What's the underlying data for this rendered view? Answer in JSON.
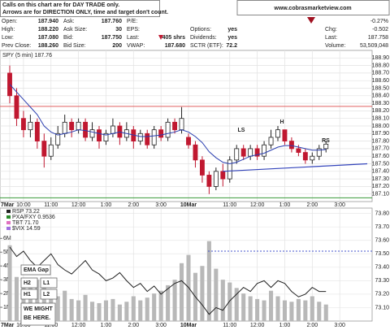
{
  "header": {
    "notice": [
      "Calls on this chart are for DAY TRADE only.",
      "Arrows are for DIRECTION ONLY, time and target don't count."
    ],
    "site": "www.cobrasmarketview.com",
    "quote_rows": [
      [
        [
          "Open:",
          "187.940"
        ],
        [
          "Ask:",
          "187.760"
        ],
        [
          "P/E:"
        ]
      ],
      [
        [
          "High:",
          "188.220"
        ],
        [
          "Ask Size:",
          "30"
        ],
        [
          "EPS:"
        ],
        [
          "Options:",
          "yes"
        ]
      ],
      [
        [
          "Low:",
          "187.080"
        ],
        [
          "Bid:",
          "187.750"
        ],
        [
          "Last:",
          "405 shrs"
        ],
        [
          "Dividends:",
          "yes"
        ]
      ],
      [
        [
          "Prev Close:",
          "188.260"
        ],
        [
          "Bid Size:",
          "200"
        ],
        [
          "VWAP:",
          "187.680"
        ],
        [
          "SCTR (ETF):",
          "72.2"
        ]
      ]
    ],
    "quote_right": [
      [
        "-0.27%"
      ],
      [
        "Chg:",
        "-0.502"
      ],
      [
        "Last:",
        "187.758"
      ],
      [
        "Volume:",
        "53,509,048"
      ]
    ]
  },
  "chart_data": [
    {
      "type": "candlestick",
      "title": "SPY (5 min) 187.76",
      "x": [
        0,
        1,
        2,
        3,
        4,
        5,
        6,
        7,
        8,
        9,
        10,
        11,
        12,
        13,
        14,
        15,
        16,
        17,
        18,
        19,
        20,
        21,
        22,
        23,
        24,
        25,
        26,
        27,
        28,
        29,
        30,
        31,
        32,
        33,
        34,
        35,
        36,
        37,
        38,
        39,
        40,
        41,
        42,
        43,
        44,
        45,
        46
      ],
      "open": [
        188.7,
        188.4,
        188.1,
        187.95,
        188.05,
        187.8,
        187.6,
        187.75,
        187.9,
        188.05,
        187.95,
        188.05,
        187.85,
        187.95,
        187.8,
        187.9,
        188.0,
        187.85,
        187.95,
        187.8,
        187.9,
        187.75,
        187.95,
        187.85,
        188.05,
        187.95,
        187.85,
        187.75,
        187.55,
        187.35,
        187.2,
        187.4,
        187.3,
        187.55,
        187.7,
        187.6,
        187.7,
        187.6,
        187.75,
        187.85,
        187.95,
        187.8,
        187.7,
        187.65,
        187.55,
        187.6,
        187.7
      ],
      "high": [
        188.8,
        188.5,
        188.2,
        188.15,
        188.1,
        187.9,
        187.85,
        188.0,
        188.15,
        188.1,
        188.1,
        188.1,
        188.05,
        188.0,
        187.95,
        188.1,
        188.05,
        188.05,
        188.0,
        187.95,
        187.95,
        188.0,
        188.0,
        188.1,
        188.1,
        188.25,
        187.9,
        187.8,
        187.6,
        187.4,
        187.45,
        187.5,
        187.6,
        187.75,
        187.75,
        187.75,
        187.75,
        187.8,
        187.95,
        188.0,
        187.95,
        187.85,
        187.75,
        187.7,
        187.65,
        187.75,
        187.8
      ],
      "low": [
        188.3,
        188.0,
        187.85,
        187.85,
        187.7,
        187.45,
        187.55,
        187.7,
        187.85,
        187.85,
        187.9,
        187.8,
        187.8,
        187.7,
        187.75,
        187.85,
        187.75,
        187.8,
        187.7,
        187.75,
        187.7,
        187.7,
        187.8,
        187.8,
        187.9,
        187.9,
        187.7,
        187.45,
        187.25,
        187.1,
        187.15,
        187.2,
        187.25,
        187.5,
        187.55,
        187.55,
        187.55,
        187.55,
        187.7,
        187.8,
        187.75,
        187.65,
        187.6,
        187.5,
        187.5,
        187.55,
        187.65
      ],
      "close": [
        188.4,
        188.1,
        187.95,
        188.05,
        187.8,
        187.6,
        187.75,
        187.9,
        188.05,
        187.95,
        188.05,
        187.85,
        187.95,
        187.8,
        187.9,
        188.0,
        187.85,
        187.95,
        187.8,
        187.9,
        187.75,
        187.95,
        187.85,
        188.05,
        187.95,
        188.1,
        187.75,
        187.55,
        187.35,
        187.2,
        187.4,
        187.3,
        187.55,
        187.7,
        187.6,
        187.7,
        187.6,
        187.75,
        187.85,
        187.95,
        187.8,
        187.7,
        187.65,
        187.55,
        187.6,
        187.7,
        187.76
      ],
      "up_color": "#222222",
      "down_color": "#c01830",
      "overlays": [
        {
          "color": "#2b3fb0",
          "values": [
            188.55,
            188.45,
            188.35,
            188.25,
            188.15,
            188.0,
            187.92,
            187.88,
            187.9,
            187.92,
            187.95,
            187.94,
            187.92,
            187.9,
            187.88,
            187.9,
            187.92,
            187.9,
            187.88,
            187.86,
            187.86,
            187.87,
            187.88,
            187.9,
            187.92,
            187.95,
            187.92,
            187.86,
            187.78,
            187.66,
            187.58,
            187.52,
            187.5,
            187.52,
            187.56,
            187.6,
            187.62,
            187.64,
            187.68,
            187.72,
            187.74,
            187.74,
            187.72,
            187.7,
            187.68,
            187.68,
            187.69
          ]
        }
      ],
      "ref_lines": [
        {
          "value": 188.26,
          "color": "#e06060"
        },
        {
          "value": 187.05,
          "color": "#3a9a3a"
        }
      ],
      "neckline": {
        "x": [
          31,
          52
        ],
        "y": [
          187.4,
          187.5
        ],
        "color": "#3344bb"
      },
      "annotations": [
        "LS",
        "H",
        "RS"
      ],
      "annotation_color": "#1a2fb0",
      "xlim": [
        0,
        52
      ],
      "ylim": [
        187.0,
        189.0
      ],
      "xticks": [
        {
          "value": 0,
          "label": "7Mar"
        },
        {
          "value": 2,
          "label": "10:00"
        },
        {
          "value": 6,
          "label": "11:00"
        },
        {
          "value": 10,
          "label": "12:00"
        },
        {
          "value": 14,
          "label": "1:00"
        },
        {
          "value": 18,
          "label": "2:00"
        },
        {
          "value": 22,
          "label": "3:00"
        },
        {
          "value": 26,
          "label": "10Mar"
        },
        {
          "value": 32,
          "label": "11:00"
        },
        {
          "value": 36,
          "label": "12:00"
        },
        {
          "value": 40,
          "label": "1:00"
        },
        {
          "value": 44,
          "label": "2:00"
        },
        {
          "value": 48,
          "label": "3:00"
        }
      ],
      "yticks": [
        {
          "value": 187.1,
          "label": "187.10"
        },
        {
          "value": 187.2,
          "label": "187.20"
        },
        {
          "value": 187.3,
          "label": "187.30"
        },
        {
          "value": 187.4,
          "label": "187.40"
        },
        {
          "value": 187.5,
          "label": "187.50"
        },
        {
          "value": 187.6,
          "label": "187.60"
        },
        {
          "value": 187.7,
          "label": "187.70"
        },
        {
          "value": 187.8,
          "label": "187.80"
        },
        {
          "value": 187.9,
          "label": "187.90"
        },
        {
          "value": 188.0,
          "label": "188.00"
        },
        {
          "value": 188.1,
          "label": "188.10"
        },
        {
          "value": 188.2,
          "label": "188.20"
        },
        {
          "value": 188.3,
          "label": "188.30"
        },
        {
          "value": 188.4,
          "label": "188.40"
        },
        {
          "value": 188.5,
          "label": "188.50"
        },
        {
          "value": 188.6,
          "label": "188.60"
        },
        {
          "value": 188.7,
          "label": "188.70"
        },
        {
          "value": 188.8,
          "label": "188.80"
        },
        {
          "value": 188.9,
          "label": "188.90"
        }
      ],
      "grid": true
    },
    {
      "type": "line",
      "series": [
        {
          "name": "RSP 73.22",
          "color": "#222222",
          "values": [
            73.55,
            73.48,
            73.52,
            73.45,
            73.4,
            73.45,
            73.5,
            73.42,
            73.38,
            73.35,
            73.4,
            73.45,
            73.38,
            73.35,
            73.3,
            73.32,
            73.36,
            73.3,
            73.25,
            73.28,
            73.22,
            73.26,
            73.2,
            73.24,
            73.28,
            73.3,
            73.25,
            73.18,
            73.12,
            73.05,
            73.1,
            73.08,
            73.15,
            73.2,
            73.25,
            73.22,
            73.28,
            73.3,
            73.25,
            73.3,
            73.28,
            73.22,
            73.18,
            73.2,
            73.25,
            73.22,
            73.22
          ]
        }
      ],
      "legend_extra": [
        {
          "name": "PXA/FXY 0.9536",
          "color": "#2b8a2b"
        },
        {
          "name": "TBT 71.70",
          "color": "#e070c0"
        },
        {
          "name": "$VIX 14.59",
          "color": "#a070e0"
        }
      ],
      "volume": {
        "color": "#b8b8b8",
        "axis": "y2",
        "values": [
          5500000,
          3200000,
          2800000,
          2400000,
          3000000,
          2600000,
          2000000,
          1800000,
          2200000,
          1600000,
          1500000,
          1900000,
          1400000,
          1300000,
          1500000,
          1600000,
          1200000,
          1400000,
          1800000,
          1500000,
          1700000,
          2000000,
          2200000,
          2600000,
          3000000,
          4200000,
          4800000,
          3500000,
          4000000,
          5800000,
          3800000,
          3000000,
          2800000,
          2400000,
          2000000,
          1800000,
          1600000,
          1500000,
          2200000,
          1800000,
          1500000,
          1400000,
          1600000,
          1500000,
          1800000,
          1400000,
          1200000
        ]
      },
      "ref_lines": [
        {
          "value": 73.52,
          "color": "#4455cc"
        }
      ],
      "annotations": [
        "EMA Gap",
        "H2",
        "L1",
        "H1",
        "L2",
        [
          "WE MIGHT",
          "BE HERE."
        ]
      ],
      "annotation_color": "#1a2fb0",
      "ylim": [
        73.0,
        73.84
      ],
      "yticks": [
        {
          "value": 73.1,
          "label": "73.10"
        },
        {
          "value": 73.2,
          "label": "73.20"
        },
        {
          "value": 73.3,
          "label": "73.30"
        },
        {
          "value": 73.4,
          "label": "73.40"
        },
        {
          "value": 73.5,
          "label": "73.50"
        },
        {
          "value": 73.6,
          "label": "73.60"
        },
        {
          "value": 73.7,
          "label": "73.70"
        },
        {
          "value": 73.8,
          "label": "73.80"
        }
      ],
      "y2lim": [
        0,
        8200000
      ],
      "y2ticks": [
        {
          "value": 1000000,
          "label": "1M"
        },
        {
          "value": 2000000,
          "label": "2M"
        },
        {
          "value": 3000000,
          "label": "3M"
        },
        {
          "value": 4000000,
          "label": "4M"
        },
        {
          "value": 5000000,
          "label": "5M"
        },
        {
          "value": 6000000,
          "label": "6M"
        }
      ],
      "grid": true
    }
  ]
}
